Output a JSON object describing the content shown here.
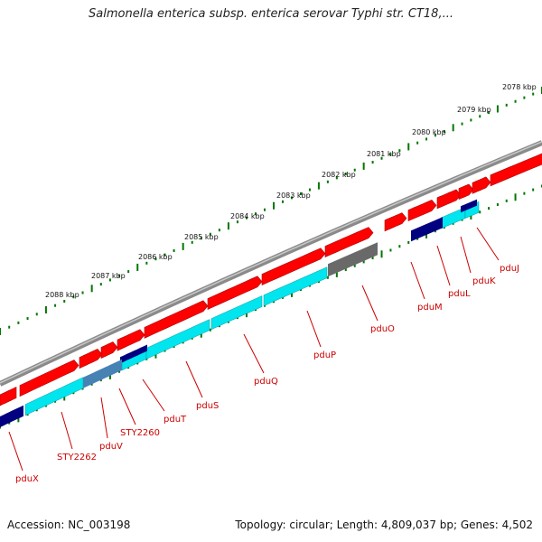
{
  "header": {
    "title": "Salmonella enterica subsp. enterica serovar Typhi str. CT18,..."
  },
  "footer": {
    "accession": "Accession: NC_003198",
    "topology": "Topology: circular; Length: 4,809,037 bp; Genes: 4,502"
  },
  "colors": {
    "backbone": "#8a8a8a",
    "cds": "#ff0000",
    "gene_cyan": "#00e5ee",
    "gene_navy": "#000080",
    "gene_steel": "#4682b4",
    "gene_gray": "#696969",
    "scale_ticks": "#007700",
    "labels": "#cc0000"
  },
  "scale_labels": [
    "2078 kbp",
    "2079 kbp",
    "2080 kbp",
    "2081 kbp",
    "2082 kbp",
    "2083 kbp",
    "2084 kbp",
    "2085 kbp",
    "2086 kbp",
    "2087 kbp",
    "2088 kbp"
  ],
  "gene_labels": [
    "pduJ",
    "pduK",
    "pduL",
    "pduM",
    "pduO",
    "pduP",
    "pduQ",
    "pduS",
    "pduT",
    "STY2260",
    "pduV",
    "STY2262",
    "pduX"
  ]
}
